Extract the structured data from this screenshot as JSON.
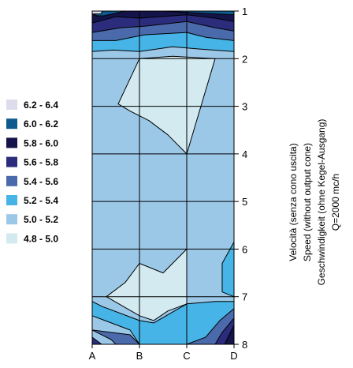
{
  "chart_data": {
    "type": "contour",
    "title_lines": [
      "Velocità (senza cono uscita)",
      "Speed (without output cone)",
      "Geschwindigkeit (ohne Kegel-Ausgang)",
      "Q=2000 mc/h"
    ],
    "x_ticks": [
      "A",
      "B",
      "C",
      "D"
    ],
    "y_ticks": [
      "1",
      "2",
      "3",
      "4",
      "5",
      "6",
      "7",
      "8"
    ],
    "xlim": [
      0,
      3
    ],
    "ylim": [
      1,
      8
    ],
    "grid": true,
    "legend_position": "left",
    "legend": [
      {
        "label": "6.2 - 6.4",
        "color": "#dcdcec"
      },
      {
        "label": "6.0 - 6.2",
        "color": "#0e5a8e"
      },
      {
        "label": "5.8 - 6.0",
        "color": "#14144a"
      },
      {
        "label": "5.6 - 5.8",
        "color": "#2c2c7c"
      },
      {
        "label": "5.4 - 5.6",
        "color": "#4a6aac"
      },
      {
        "label": "5.2 - 5.4",
        "color": "#46b4e6"
      },
      {
        "label": "5.0 - 5.2",
        "color": "#9cc8e8"
      },
      {
        "label": "4.8 - 5.0",
        "color": "#d2eaf0"
      }
    ],
    "regions": [
      {
        "band": "5.0 - 5.2",
        "color": "#9cc8e8",
        "points": [
          [
            0,
            1
          ],
          [
            3,
            1
          ],
          [
            3,
            8
          ],
          [
            0,
            8
          ]
        ]
      },
      {
        "band": "5.2 - 5.4",
        "color": "#46b4e6",
        "points": [
          [
            0,
            1
          ],
          [
            3,
            1
          ],
          [
            3,
            1.85
          ],
          [
            2.3,
            1.8
          ],
          [
            1.7,
            1.75
          ],
          [
            1,
            1.85
          ],
          [
            0.45,
            1.82
          ],
          [
            0,
            1.85
          ]
        ]
      },
      {
        "band": "5.4 - 5.6",
        "color": "#4a6aac",
        "points": [
          [
            0,
            1
          ],
          [
            3,
            1
          ],
          [
            3,
            1.62
          ],
          [
            2.4,
            1.55
          ],
          [
            2,
            1.45
          ],
          [
            1.1,
            1.5
          ],
          [
            0.5,
            1.62
          ],
          [
            0,
            1.62
          ]
        ]
      },
      {
        "band": "5.6 - 5.8",
        "color": "#2c2c7c",
        "points": [
          [
            0,
            1
          ],
          [
            3,
            1
          ],
          [
            3,
            1.42
          ],
          [
            2.6,
            1.35
          ],
          [
            2,
            1.22
          ],
          [
            1.1,
            1.32
          ],
          [
            0.6,
            1.35
          ],
          [
            0,
            1.45
          ]
        ]
      },
      {
        "band": "5.8 - 6.0",
        "color": "#14144a",
        "points": [
          [
            0,
            1
          ],
          [
            3,
            1
          ],
          [
            3,
            1.22
          ],
          [
            2.6,
            1.15
          ],
          [
            2,
            1.08
          ],
          [
            1,
            1.15
          ],
          [
            0.5,
            1.12
          ],
          [
            0,
            1.25
          ]
        ]
      },
      {
        "band": "6.0 - 6.2",
        "color": "#0e5a8e",
        "points": [
          [
            0,
            1
          ],
          [
            3,
            1
          ],
          [
            3,
            1.08
          ],
          [
            2.4,
            1.05
          ],
          [
            1.5,
            1.0
          ],
          [
            0.7,
            1.0
          ],
          [
            0.25,
            1.1
          ],
          [
            0.1,
            1.1
          ],
          [
            0,
            1.05
          ]
        ]
      },
      {
        "band": "6.2 - 6.4",
        "color": "#dcdcec",
        "points": [
          [
            0,
            1
          ],
          [
            0.22,
            1
          ],
          [
            0.18,
            1.06
          ],
          [
            0,
            1.06
          ]
        ]
      },
      {
        "band": "5.2 - 5.4",
        "color": "#46b4e6",
        "points": [
          [
            3,
            5.85
          ],
          [
            2.75,
            6.3
          ],
          [
            2.75,
            6.9
          ],
          [
            3,
            7
          ]
        ]
      },
      {
        "band": "5.2 - 5.4",
        "color": "#46b4e6",
        "points": [
          [
            0,
            7.4
          ],
          [
            0.8,
            7.7
          ],
          [
            1,
            8
          ],
          [
            3,
            8
          ],
          [
            3,
            7.1
          ],
          [
            2.6,
            7.1
          ],
          [
            2,
            7.15
          ],
          [
            1.3,
            7.55
          ],
          [
            1,
            7.5
          ],
          [
            0.2,
            7.2
          ],
          [
            0,
            7.1
          ]
        ]
      },
      {
        "band": "5.4 - 5.6",
        "color": "#4a6aac",
        "points": [
          [
            0,
            7.7
          ],
          [
            0.4,
            7.9
          ],
          [
            0.5,
            8
          ],
          [
            3,
            8
          ],
          [
            3,
            7.25
          ],
          [
            2.7,
            7.5
          ],
          [
            2.4,
            7.85
          ],
          [
            2,
            8
          ],
          [
            1,
            8
          ],
          [
            0.8,
            7.8
          ]
        ]
      },
      {
        "band": "5.6 - 5.8",
        "color": "#2c2c7c",
        "points": [
          [
            0,
            7.85
          ],
          [
            0.2,
            8
          ],
          [
            0,
            8
          ]
        ]
      },
      {
        "band": "5.6 - 5.8",
        "color": "#2c2c7c",
        "points": [
          [
            3,
            7.45
          ],
          [
            2.75,
            7.75
          ],
          [
            2.6,
            8
          ],
          [
            3,
            8
          ]
        ]
      },
      {
        "band": "5.8 - 6.0",
        "color": "#14144a",
        "points": [
          [
            3,
            7.6
          ],
          [
            2.9,
            7.8
          ],
          [
            2.8,
            8
          ],
          [
            3,
            8
          ]
        ]
      },
      {
        "band": "4.8 - 5.0",
        "color": "#d2eaf0",
        "points": [
          [
            1,
            2
          ],
          [
            1.7,
            1.95
          ],
          [
            2.6,
            2
          ],
          [
            2,
            4
          ],
          [
            1.6,
            3.6
          ],
          [
            1.2,
            3.3
          ],
          [
            0.8,
            3.1
          ],
          [
            0.55,
            2.95
          ]
        ]
      },
      {
        "band": "4.8 - 5.0",
        "color": "#d2eaf0",
        "points": [
          [
            2,
            6
          ],
          [
            2,
            7.15
          ],
          [
            1.6,
            7.3
          ],
          [
            1.3,
            7.5
          ],
          [
            1,
            7.4
          ],
          [
            0.3,
            7
          ],
          [
            0.7,
            6.7
          ],
          [
            1,
            6.3
          ],
          [
            1.5,
            6.5
          ]
        ]
      }
    ]
  }
}
